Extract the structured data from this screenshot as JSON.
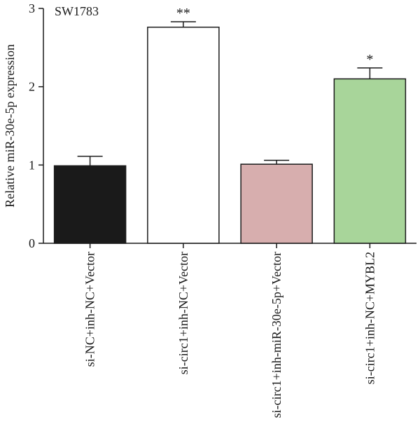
{
  "panel_label": "SW1783",
  "chart_data": {
    "type": "bar",
    "ylabel": "Relative miR-30e-5p expression",
    "xlabel": "",
    "ylim": [
      0,
      3
    ],
    "yticks": [
      0,
      1,
      2,
      3
    ],
    "grid": false,
    "categories": [
      "si-NC+inh-NC+Vector",
      "si-circ1+inh-NC+Vector",
      "si-circ1+inh-miR-30e-5p+Vector",
      "si-circ1+inh-NC+MYBL2"
    ],
    "values": [
      0.99,
      2.76,
      1.01,
      2.1
    ],
    "errors": [
      0.12,
      0.07,
      0.05,
      0.14
    ],
    "significance": [
      "",
      "**",
      "",
      "*"
    ],
    "colors": [
      "#1a1a1a",
      "#ffffff",
      "#d7aeae",
      "#a8d59a"
    ]
  }
}
